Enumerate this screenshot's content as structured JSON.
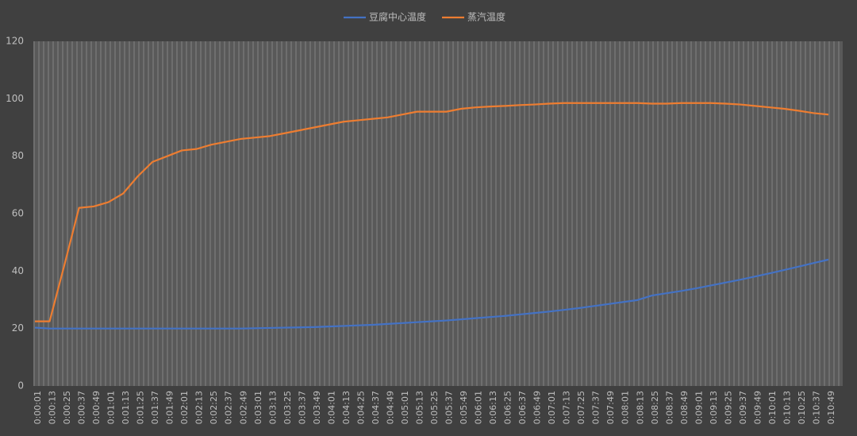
{
  "chart_data": {
    "type": "line",
    "categories": [
      "0:00:01",
      "0:00:13",
      "0:00:25",
      "0:00:37",
      "0:00:49",
      "0:01:01",
      "0:01:13",
      "0:01:25",
      "0:01:37",
      "0:01:49",
      "0:02:01",
      "0:02:13",
      "0:02:25",
      "0:02:37",
      "0:02:49",
      "0:03:01",
      "0:03:13",
      "0:03:25",
      "0:03:37",
      "0:03:49",
      "0:04:01",
      "0:04:13",
      "0:04:25",
      "0:04:37",
      "0:04:49",
      "0:05:01",
      "0:05:13",
      "0:05:25",
      "0:05:37",
      "0:05:49",
      "0:06:01",
      "0:06:13",
      "0:06:25",
      "0:06:37",
      "0:06:49",
      "0:07:01",
      "0:07:13",
      "0:07:25",
      "0:07:37",
      "0:07:49",
      "0:08:01",
      "0:08:13",
      "0:08:25",
      "0:08:37",
      "0:08:49",
      "0:09:01",
      "0:09:13",
      "0:09:25",
      "0:09:37",
      "0:09:49",
      "0:10:01",
      "0:10:13",
      "0:10:25",
      "0:10:37",
      "0:10:49"
    ],
    "series": [
      {
        "name": "豆腐中心温度",
        "color": "#4472c4",
        "values": [
          20.3,
          20,
          20,
          20,
          20,
          20,
          20,
          20,
          20,
          20,
          20,
          20,
          20,
          20,
          20,
          20.1,
          20.2,
          20.3,
          20.4,
          20.5,
          20.7,
          20.9,
          21.1,
          21.3,
          21.6,
          21.9,
          22.2,
          22.5,
          22.8,
          23.2,
          23.6,
          24,
          24.4,
          24.9,
          25.4,
          25.9,
          26.5,
          27.1,
          27.8,
          28.5,
          29.2,
          29.9,
          31.5,
          32.3,
          33.1,
          34,
          35,
          36,
          37,
          38.1,
          39.2,
          40.4,
          41.6,
          42.8,
          44
        ]
      },
      {
        "name": "蒸汽温度",
        "color": "#ed7d31",
        "values": [
          22.5,
          22.5,
          42,
          62,
          62.5,
          64,
          67,
          73,
          78,
          80,
          82,
          82.5,
          84,
          85,
          86,
          86.5,
          87,
          88,
          89,
          90,
          91,
          92,
          92.5,
          93,
          93.5,
          94.5,
          95.5,
          95.5,
          95.5,
          96.5,
          97,
          97.3,
          97.5,
          97.8,
          98,
          98.3,
          98.5,
          98.5,
          98.5,
          98.5,
          98.5,
          98.5,
          98.3,
          98.3,
          98.5,
          98.5,
          98.5,
          98.3,
          98,
          97.5,
          97,
          96.5,
          95.8,
          95,
          94.5
        ]
      }
    ],
    "ylim": [
      0,
      120
    ],
    "yticks": [
      0,
      20,
      40,
      60,
      80,
      100,
      120
    ],
    "legend": "top"
  }
}
